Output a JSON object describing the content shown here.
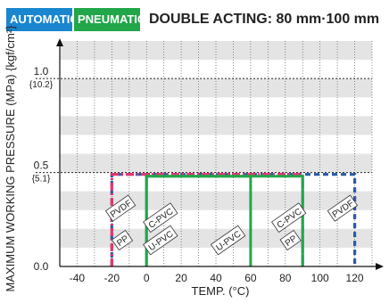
{
  "header": {
    "badge_1": "AUTOMATIC",
    "badge_2": "PNEUMATIC",
    "title": "DOUBLE ACTING: 80 mm·100 mm",
    "badge_1_color": "#1a86d0",
    "badge_2_color": "#22a64a"
  },
  "chart_data": {
    "type": "line",
    "xlabel": "TEMP. (°C)",
    "ylabel": "MAXIMUM WORKING PRESSURE (MPa) {kgf/cm²}",
    "xlim": [
      -50,
      130
    ],
    "ylim": [
      0,
      1.2
    ],
    "x_ticks": [
      -40,
      -20,
      0,
      20,
      40,
      60,
      80,
      100,
      120
    ],
    "y_ticks": [
      {
        "value": 0.0,
        "label": "0.0",
        "sub": ""
      },
      {
        "value": 0.5,
        "label": "0.5",
        "sub": "{5.1}"
      },
      {
        "value": 1.0,
        "label": "1.0",
        "sub": "{10.2}"
      }
    ],
    "grid": "vertical dotted lines every 10 °C; horizontal shaded bands every 0.1 MPa; dotted reference lines at 0.5 and 1.0",
    "series": [
      {
        "name": "PVDF",
        "color": "#2a5aa8",
        "style": "dashed",
        "x": [
          -20,
          -20,
          120,
          120
        ],
        "y": [
          0,
          0.49,
          0.49,
          0
        ]
      },
      {
        "name": "PP",
        "color": "#e8336e",
        "style": "dash-dot",
        "x": [
          -20,
          -20,
          90,
          90
        ],
        "y": [
          0,
          0.49,
          0.49,
          0
        ]
      },
      {
        "name": "C-PVC",
        "color": "#5ab8e8",
        "style": "dashed",
        "x": [
          90,
          90
        ],
        "y": [
          0.49,
          0
        ]
      },
      {
        "name": "U-PVC",
        "color": "#22a64a",
        "style": "solid",
        "x": [
          0,
          0,
          60,
          60
        ],
        "y": [
          0,
          0.48,
          0.48,
          0
        ]
      },
      {
        "name": "C-PVC",
        "color": "#22a64a",
        "style": "solid",
        "x": [
          0,
          0,
          90,
          90
        ],
        "y": [
          0,
          0.48,
          0.48,
          0
        ]
      }
    ],
    "annotations": [
      {
        "text": "PVDF",
        "x": -15,
        "y": 0.31
      },
      {
        "text": "PP",
        "x": -14,
        "y": 0.14
      },
      {
        "text": "C-PVC",
        "x": 8,
        "y": 0.26
      },
      {
        "text": "U-PVC",
        "x": 8,
        "y": 0.14
      },
      {
        "text": "U-PVC",
        "x": 47,
        "y": 0.14
      },
      {
        "text": "C-PVC",
        "x": 82,
        "y": 0.26
      },
      {
        "text": "PP",
        "x": 83,
        "y": 0.14
      },
      {
        "text": "PVDF",
        "x": 113,
        "y": 0.31
      }
    ]
  }
}
